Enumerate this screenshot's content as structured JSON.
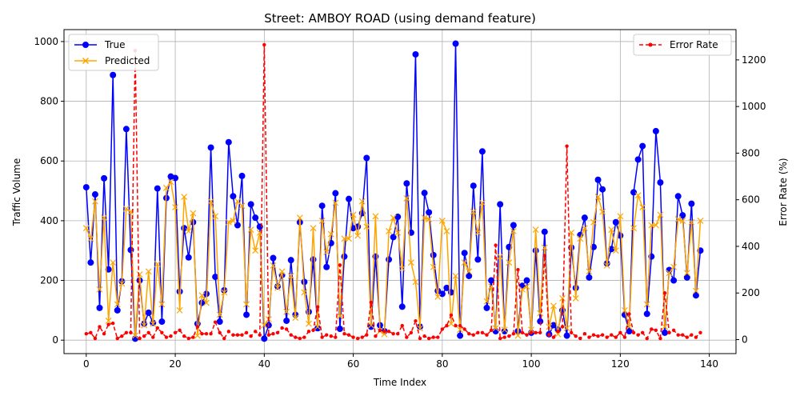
{
  "chart_data": {
    "type": "line",
    "title": "Street: AMBOY ROAD (using demand feature)",
    "xlabel": "Time Index",
    "ylabel": "Traffic Volume",
    "ylabel_right": "Error Rate (%)",
    "xlim": [
      -5,
      146
    ],
    "ylim": [
      -45,
      1040
    ],
    "ylim_right": [
      -60,
      1330
    ],
    "x_ticks": [
      0,
      20,
      40,
      60,
      80,
      100,
      120,
      140
    ],
    "y_ticks": [
      0,
      200,
      400,
      600,
      800,
      1000
    ],
    "y_ticks_right": [
      0,
      200,
      400,
      600,
      800,
      1000,
      1200
    ],
    "grid": true,
    "legend_left_position": "upper-left",
    "legend_right_position": "upper-right",
    "colors": {
      "true": "#0000ff",
      "predicted": "#ffa500",
      "error": "#ff0000"
    },
    "series": [
      {
        "name": "True",
        "axis": "left",
        "marker": "circle",
        "values": [
          512,
          260,
          488,
          108,
          542,
          237,
          888,
          100,
          197,
          707,
          302,
          5,
          200,
          55,
          92,
          58,
          508,
          62,
          476,
          548,
          543,
          163,
          375,
          277,
          395,
          55,
          125,
          155,
          645,
          212,
          62,
          167,
          663,
          482,
          385,
          550,
          85,
          455,
          410,
          380,
          5,
          50,
          275,
          180,
          218,
          65,
          268,
          85,
          395,
          195,
          95,
          270,
          40,
          450,
          245,
          325,
          492,
          38,
          280,
          473,
          375,
          380,
          425,
          610,
          45,
          280,
          50,
          30,
          270,
          345,
          413,
          112,
          525,
          360,
          957,
          45,
          493,
          428,
          285,
          165,
          155,
          175,
          160,
          993,
          15,
          292,
          215,
          517,
          270,
          632,
          108,
          200,
          30,
          455,
          30,
          312,
          385,
          30,
          182,
          200,
          25,
          300,
          63,
          363,
          20,
          50,
          35,
          100,
          15,
          310,
          175,
          352,
          410,
          210,
          312,
          537,
          505,
          257,
          305,
          395,
          350,
          85,
          30,
          495,
          605,
          650,
          88,
          280,
          700,
          528,
          25,
          235,
          200,
          482,
          418,
          210,
          457,
          150,
          300
        ]
      },
      {
        "name": "Predicted",
        "axis": "left",
        "marker": "x",
        "values": [
          375,
          340,
          465,
          170,
          410,
          65,
          260,
          120,
          190,
          440,
          430,
          15,
          220,
          50,
          230,
          55,
          255,
          120,
          510,
          530,
          445,
          100,
          480,
          365,
          425,
          15,
          150,
          125,
          465,
          415,
          85,
          160,
          395,
          400,
          465,
          450,
          120,
          370,
          300,
          360,
          50,
          70,
          250,
          175,
          230,
          95,
          215,
          75,
          410,
          160,
          55,
          375,
          45,
          400,
          295,
          355,
          460,
          80,
          340,
          340,
          420,
          350,
          465,
          380,
          50,
          415,
          30,
          20,
          365,
          410,
          360,
          240,
          475,
          260,
          195,
          40,
          410,
          405,
          245,
          145,
          400,
          365,
          55,
          215,
          35,
          260,
          230,
          430,
          360,
          460,
          130,
          180,
          40,
          280,
          35,
          260,
          365,
          15,
          170,
          180,
          35,
          370,
          90,
          310,
          45,
          115,
          20,
          140,
          40,
          360,
          140,
          340,
          375,
          230,
          395,
          480,
          430,
          250,
          370,
          300,
          415,
          100,
          45,
          375,
          485,
          445,
          120,
          385,
          385,
          420,
          45,
          225,
          245,
          405,
          400,
          225,
          395,
          165,
          400
        ]
      },
      {
        "name": "Error Rate",
        "axis": "right",
        "marker": "dot",
        "dashed": true,
        "values": [
          25,
          30,
          5,
          55,
          25,
          65,
          70,
          5,
          15,
          30,
          30,
          1240,
          5,
          15,
          30,
          10,
          50,
          30,
          10,
          15,
          30,
          40,
          15,
          5,
          10,
          55,
          25,
          25,
          25,
          75,
          30,
          5,
          35,
          20,
          20,
          20,
          30,
          15,
          35,
          20,
          1265,
          20,
          25,
          30,
          50,
          45,
          20,
          10,
          5,
          10,
          35,
          40,
          140,
          10,
          20,
          15,
          10,
          320,
          25,
          20,
          10,
          5,
          10,
          20,
          160,
          15,
          40,
          35,
          35,
          25,
          25,
          60,
          10,
          30,
          80,
          5,
          15,
          5,
          10,
          10,
          45,
          60,
          105,
          60,
          60,
          45,
          25,
          20,
          30,
          30,
          20,
          40,
          405,
          5,
          10,
          15,
          25,
          300,
          30,
          20,
          30,
          30,
          30,
          360,
          20,
          10,
          35,
          55,
          830,
          30,
          15,
          5,
          25,
          10,
          20,
          15,
          20,
          10,
          20,
          10,
          30,
          10,
          110,
          30,
          20,
          30,
          5,
          45,
          40,
          5,
          200,
          30,
          40,
          20,
          20,
          10,
          20,
          10,
          30
        ]
      }
    ]
  }
}
